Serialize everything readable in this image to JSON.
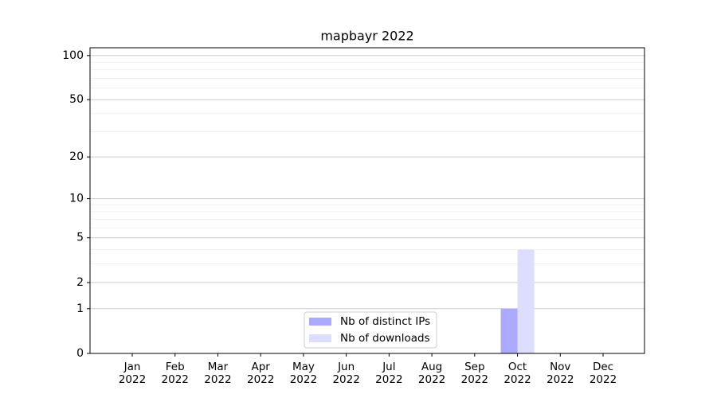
{
  "chart_data": {
    "type": "bar",
    "title": "mapbayr 2022",
    "categories": [
      "Jan\n2022",
      "Feb\n2022",
      "Mar\n2022",
      "Apr\n2022",
      "May\n2022",
      "Jun\n2022",
      "Jul\n2022",
      "Aug\n2022",
      "Sep\n2022",
      "Oct\n2022",
      "Nov\n2022",
      "Dec\n2022"
    ],
    "series": [
      {
        "name": "Nb of distinct IPs",
        "color": "#aaaaff",
        "values": [
          0,
          0,
          0,
          0,
          0,
          0,
          0,
          0,
          0,
          1,
          0,
          0
        ]
      },
      {
        "name": "Nb of downloads",
        "color": "#ddddff",
        "values": [
          0,
          0,
          0,
          0,
          0,
          0,
          0,
          0,
          0,
          4,
          0,
          0
        ]
      }
    ],
    "yscale": "log1p",
    "ylim": [
      0,
      113
    ],
    "yticks": [
      0,
      1,
      2,
      5,
      10,
      20,
      50,
      100
    ],
    "minor_yticks": [
      3,
      4,
      6,
      7,
      8,
      9,
      30,
      40,
      60,
      70,
      80,
      90
    ],
    "grid": true,
    "legend": "lower center"
  }
}
